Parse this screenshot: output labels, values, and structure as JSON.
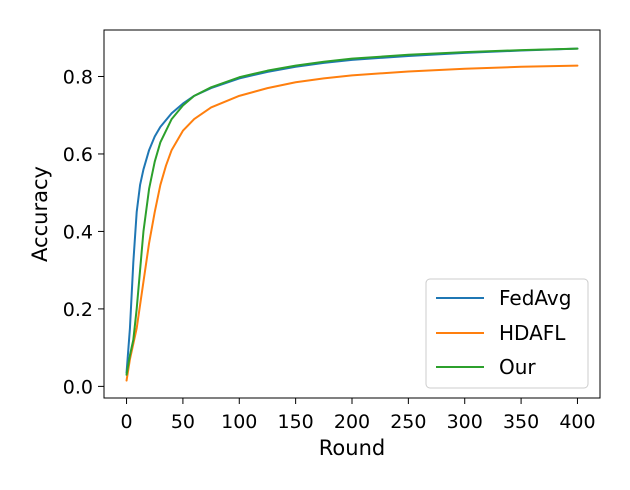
{
  "chart_data": {
    "type": "line",
    "title": "",
    "xlabel": "Round",
    "ylabel": "Accuracy",
    "xlim": [
      -20,
      420
    ],
    "ylim": [
      -0.03,
      0.92
    ],
    "xticks": [
      0,
      50,
      100,
      150,
      200,
      250,
      300,
      350,
      400
    ],
    "yticks": [
      0.0,
      0.2,
      0.4,
      0.6,
      0.8
    ],
    "grid": false,
    "legend": "lower-right",
    "series": [
      {
        "name": "FedAvg",
        "color": "#1f77b4",
        "x": [
          0,
          3,
          6,
          9,
          12,
          15,
          20,
          25,
          30,
          40,
          50,
          60,
          75,
          100,
          125,
          150,
          175,
          200,
          250,
          300,
          350,
          400
        ],
        "y": [
          0.035,
          0.15,
          0.32,
          0.45,
          0.52,
          0.56,
          0.61,
          0.645,
          0.67,
          0.705,
          0.73,
          0.75,
          0.77,
          0.795,
          0.812,
          0.825,
          0.835,
          0.843,
          0.853,
          0.861,
          0.867,
          0.872
        ]
      },
      {
        "name": "HDAFL",
        "color": "#ff7f0e",
        "x": [
          0,
          3,
          6,
          9,
          12,
          15,
          20,
          25,
          30,
          35,
          40,
          50,
          60,
          75,
          100,
          125,
          150,
          175,
          200,
          250,
          300,
          350,
          400
        ],
        "y": [
          0.015,
          0.07,
          0.11,
          0.15,
          0.21,
          0.27,
          0.37,
          0.45,
          0.52,
          0.57,
          0.61,
          0.66,
          0.69,
          0.72,
          0.75,
          0.77,
          0.785,
          0.795,
          0.803,
          0.813,
          0.82,
          0.825,
          0.828
        ]
      },
      {
        "name": "Our",
        "color": "#2ca02c",
        "x": [
          0,
          3,
          6,
          9,
          12,
          15,
          20,
          25,
          30,
          40,
          50,
          60,
          75,
          100,
          125,
          150,
          175,
          200,
          250,
          300,
          350,
          400
        ],
        "y": [
          0.03,
          0.08,
          0.12,
          0.2,
          0.3,
          0.4,
          0.51,
          0.58,
          0.63,
          0.69,
          0.725,
          0.75,
          0.772,
          0.798,
          0.815,
          0.828,
          0.838,
          0.846,
          0.856,
          0.863,
          0.868,
          0.872
        ]
      }
    ]
  }
}
